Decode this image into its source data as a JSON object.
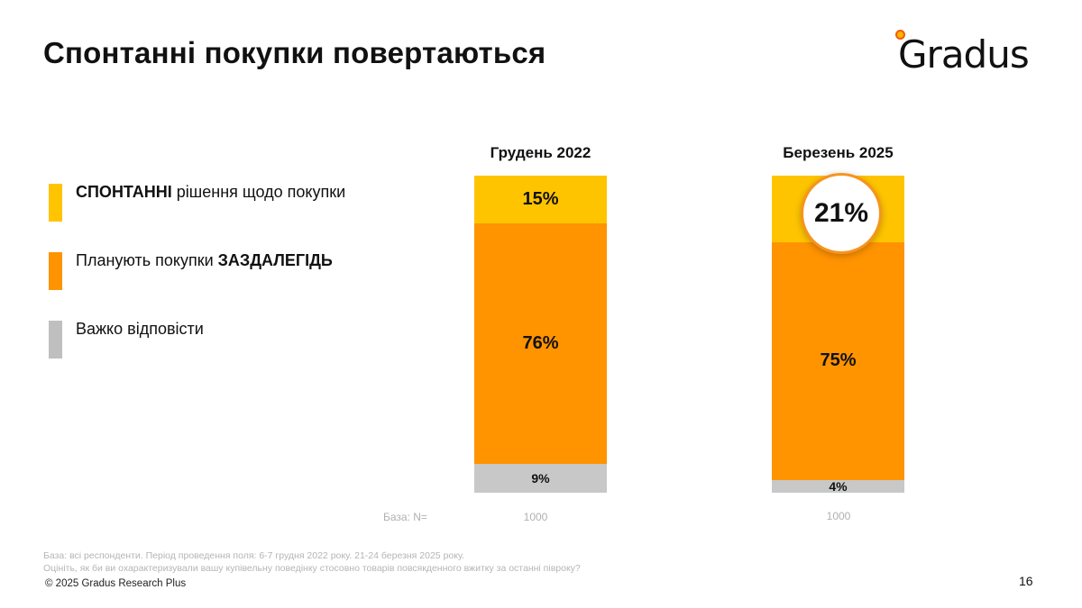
{
  "slide": {
    "title": "Спонтанні покупки повертаються",
    "logo_text": "Gradus",
    "page_number": "16"
  },
  "legend": [
    {
      "bold": "СПОНТАННІ",
      "rest": " рішення щодо покупки",
      "bold_first": true,
      "color": "#FFC400"
    },
    {
      "bold": "ЗАЗДАЛЕГІДЬ",
      "rest": "Планують покупки ",
      "bold_first": false,
      "color": "#FF9300"
    },
    {
      "bold": "",
      "rest": "Важко відповісти",
      "bold_first": true,
      "color": "#BFBFBF"
    }
  ],
  "base": {
    "label": "База: N=",
    "values": [
      "1000",
      "1000"
    ]
  },
  "footnote": {
    "line1": "База: всі респонденти. Період проведення поля: 6-7 грудня 2022 року. 21-24 березня 2025 року.",
    "line2": "Оцініть, як би ви охарактеризували вашу купівельну поведінку стосовно товарів повсякденного вжитку за останні півроку?",
    "copyright": "© 2025 Gradus Research Plus"
  },
  "chart_data": {
    "type": "bar",
    "stacked": true,
    "title": "Спонтанні покупки повертаються",
    "categories": [
      "Грудень 2022",
      "Березень 2025"
    ],
    "series": [
      {
        "name": "СПОНТАННІ рішення щодо покупки",
        "color": "#FFC400",
        "values": [
          15,
          21
        ],
        "labels": [
          "15%",
          "21%"
        ]
      },
      {
        "name": "Планують покупки ЗАЗДАЛЕГІДЬ",
        "color": "#FF9300",
        "values": [
          76,
          75
        ],
        "labels": [
          "76%",
          "75%"
        ]
      },
      {
        "name": "Важко відповісти",
        "color": "#C8C8C8",
        "values": [
          9,
          4
        ],
        "labels": [
          "9%",
          "4%"
        ]
      }
    ],
    "highlight": {
      "category": "Березень 2025",
      "series": "СПОНТАННІ рішення щодо покупки",
      "label": "21%"
    },
    "ylim": [
      0,
      100
    ],
    "unit": "%",
    "legend_position": "left",
    "grid": false
  }
}
